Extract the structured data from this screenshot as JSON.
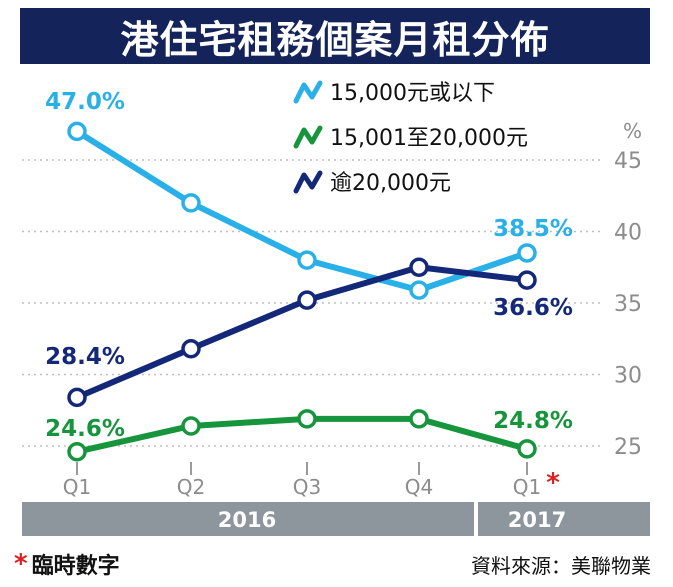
{
  "chart_data": {
    "type": "line",
    "title": "港住宅租務個案月租分佈",
    "unit": "%",
    "ylim": [
      22,
      49
    ],
    "yticks": [
      25,
      30,
      35,
      40,
      45
    ],
    "grid": true,
    "legend_position": "top-right",
    "categories": [
      "Q1",
      "Q2",
      "Q3",
      "Q4",
      "Q1"
    ],
    "category_mark": "*",
    "year_labels": [
      "2016",
      "2017"
    ],
    "series": [
      {
        "name": "15,000元或以下",
        "color": "#2ab0e8",
        "values": [
          47.0,
          42.0,
          38.0,
          35.9,
          38.5
        ],
        "labels": [
          "47.0%",
          "",
          "",
          "",
          "38.5%"
        ]
      },
      {
        "name": "15,001至20,000元",
        "color": "#17953d",
        "values": [
          24.6,
          26.4,
          26.9,
          26.9,
          24.8
        ],
        "labels": [
          "24.6%",
          "",
          "",
          "",
          "24.8%"
        ]
      },
      {
        "name": "逾20,000元",
        "color": "#14287a",
        "values": [
          28.4,
          31.8,
          35.2,
          37.5,
          36.6
        ],
        "labels": [
          "28.4%",
          "",
          "",
          "",
          "36.6%"
        ]
      }
    ]
  },
  "footer": {
    "star": "*",
    "note": "臨時數字",
    "source": "資料來源：美聯物業"
  }
}
